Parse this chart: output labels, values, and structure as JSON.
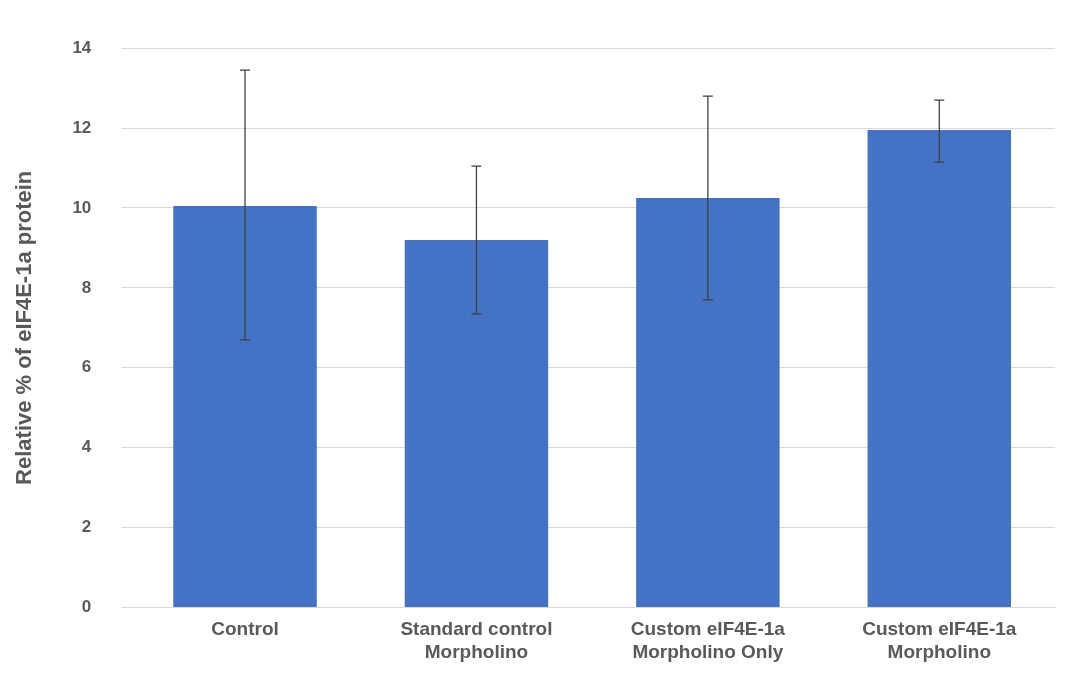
{
  "chart_data": {
    "type": "bar",
    "ylabel": "Relative % of eIF4E-1a protein",
    "categories": [
      "Control",
      "Standard control Morpholino",
      "Custom eIF4E-1a Morpholino Only",
      "Custom eIF4E-1a Morpholino"
    ],
    "values": [
      10.05,
      9.2,
      10.25,
      11.95
    ],
    "color": "#4472c4",
    "errors": [
      [
        6.7,
        13.45
      ],
      [
        7.35,
        11.05
      ],
      [
        7.7,
        12.8
      ],
      [
        11.15,
        12.7
      ]
    ],
    "ylim": [
      0,
      14
    ],
    "yticks": [
      0,
      2,
      4,
      6,
      8,
      10,
      12,
      14
    ],
    "grid": "y",
    "legend": false
  }
}
